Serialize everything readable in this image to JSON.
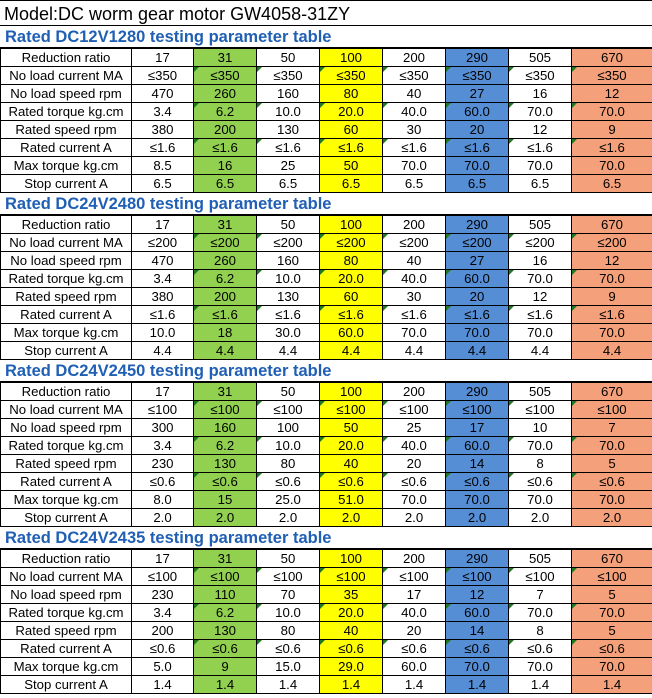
{
  "title": "Model:DC worm gear motor GW4058-31ZY",
  "row_labels": [
    "Reduction ratio",
    "No load current MA",
    "No load speed rpm",
    "Rated torque kg.cm",
    "Rated speed rpm",
    "Rated current A",
    "Max torque kg.cm",
    "Stop current A"
  ],
  "sections": [
    {
      "heading": "Rated DC12V1280 testing parameter table",
      "rows": [
        [
          "17",
          "31",
          "50",
          "100",
          "200",
          "290",
          "505",
          "670"
        ],
        [
          "≤350",
          "≤350",
          "≤350",
          "≤350",
          "≤350",
          "≤350",
          "≤350",
          "≤350"
        ],
        [
          "470",
          "260",
          "160",
          "80",
          "40",
          "27",
          "16",
          "12"
        ],
        [
          "3.4",
          "6.2",
          "10.0",
          "20.0",
          "40.0",
          "60.0",
          "70.0",
          "70.0"
        ],
        [
          "380",
          "200",
          "130",
          "60",
          "30",
          "20",
          "12",
          "9"
        ],
        [
          "≤1.6",
          "≤1.6",
          "≤1.6",
          "≤1.6",
          "≤1.6",
          "≤1.6",
          "≤1.6",
          "≤1.6"
        ],
        [
          "8.5",
          "16",
          "25",
          "50",
          "70.0",
          "70.0",
          "70.0",
          "70.0"
        ],
        [
          "6.5",
          "6.5",
          "6.5",
          "6.5",
          "6.5",
          "6.5",
          "6.5",
          "6.5"
        ]
      ]
    },
    {
      "heading": "Rated DC24V2480 testing parameter table",
      "rows": [
        [
          "17",
          "31",
          "50",
          "100",
          "200",
          "290",
          "505",
          "670"
        ],
        [
          "≤200",
          "≤200",
          "≤200",
          "≤200",
          "≤200",
          "≤200",
          "≤200",
          "≤200"
        ],
        [
          "470",
          "260",
          "160",
          "80",
          "40",
          "27",
          "16",
          "12"
        ],
        [
          "3.4",
          "6.2",
          "10.0",
          "20.0",
          "40.0",
          "60.0",
          "70.0",
          "70.0"
        ],
        [
          "380",
          "200",
          "130",
          "60",
          "30",
          "20",
          "12",
          "9"
        ],
        [
          "≤1.6",
          "≤1.6",
          "≤1.6",
          "≤1.6",
          "≤1.6",
          "≤1.6",
          "≤1.6",
          "≤1.6"
        ],
        [
          "10.0",
          "18",
          "30.0",
          "60.0",
          "70.0",
          "70.0",
          "70.0",
          "70.0"
        ],
        [
          "4.4",
          "4.4",
          "4.4",
          "4.4",
          "4.4",
          "4.4",
          "4.4",
          "4.4"
        ]
      ]
    },
    {
      "heading": "Rated DC24V2450 testing parameter table",
      "rows": [
        [
          "17",
          "31",
          "50",
          "100",
          "200",
          "290",
          "505",
          "670"
        ],
        [
          "≤100",
          "≤100",
          "≤100",
          "≤100",
          "≤100",
          "≤100",
          "≤100",
          "≤100"
        ],
        [
          "300",
          "160",
          "100",
          "50",
          "25",
          "17",
          "10",
          "7"
        ],
        [
          "3.4",
          "6.2",
          "10.0",
          "20.0",
          "40.0",
          "60.0",
          "70.0",
          "70.0"
        ],
        [
          "230",
          "130",
          "80",
          "40",
          "20",
          "14",
          "8",
          "5"
        ],
        [
          "≤0.6",
          "≤0.6",
          "≤0.6",
          "≤0.6",
          "≤0.6",
          "≤0.6",
          "≤0.6",
          "≤0.6"
        ],
        [
          "8.0",
          "15",
          "25.0",
          "51.0",
          "70.0",
          "70.0",
          "70.0",
          "70.0"
        ],
        [
          "2.0",
          "2.0",
          "2.0",
          "2.0",
          "2.0",
          "2.0",
          "2.0",
          "2.0"
        ]
      ]
    },
    {
      "heading": "Rated DC24V2435 testing parameter table",
      "rows": [
        [
          "17",
          "31",
          "50",
          "100",
          "200",
          "290",
          "505",
          "670"
        ],
        [
          "≤100",
          "≤100",
          "≤100",
          "≤100",
          "≤100",
          "≤100",
          "≤100",
          "≤100"
        ],
        [
          "230",
          "110",
          "70",
          "35",
          "17",
          "12",
          "7",
          "5"
        ],
        [
          "3.4",
          "6.2",
          "10.0",
          "20.0",
          "40.0",
          "60.0",
          "70.0",
          "70.0"
        ],
        [
          "200",
          "130",
          "80",
          "40",
          "20",
          "14",
          "8",
          "5"
        ],
        [
          "≤0.6",
          "≤0.6",
          "≤0.6",
          "≤0.6",
          "≤0.6",
          "≤0.6",
          "≤0.6",
          "≤0.6"
        ],
        [
          "5.0",
          "9",
          "15.0",
          "29.0",
          "60.0",
          "70.0",
          "70.0",
          "70.0"
        ],
        [
          "1.4",
          "1.4",
          "1.4",
          "1.4",
          "1.4",
          "1.4",
          "1.4",
          "1.4"
        ]
      ]
    }
  ],
  "column_colors": [
    "",
    "#92d050",
    "",
    "#ffff00",
    "",
    "#558ed5",
    "",
    "#f4a07a"
  ]
}
